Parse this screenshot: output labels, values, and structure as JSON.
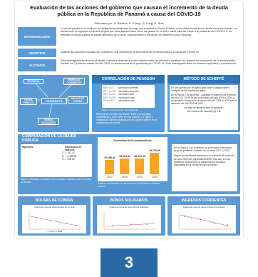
{
  "poster": {
    "title": "Evaluación de las acciones del gobierno que causan el incremento de la deuda pública en la República de Panamá a causa del COVID-19",
    "authors": "Elaborado por: A. Barraza, K. Chung, G. Fong, R. Ruiz",
    "intro": {
      "label": "INTRODUCCIÓN",
      "text": "La deuda pública es el conjunto de obligaciones pendientes de pago que mantiene el Sector Público, a una determinada fecha, frente a sus acreedores. La disminución de ingresos corrientes al igual que otros factores tales como los gastos en el sector salud para dar frente a la pandemia del COVID-19, ha afectado la deuda pública de países alrededor del mundo, especialmente a los países en desarrollo como Panamá."
    },
    "objetivo": {
      "label": "OBJETIVO",
      "text": "Analizar las acciones tomadas por el gobierno, que contribuyen al incremento de la deuda pública, a causa del COVID-19."
    },
    "alcance": {
      "label": "ALCANCE",
      "text": "Esta investigación tiene como propósito explicar y observar si existe relación entre las diferentes variables con respecto al incremento de la deuda pública durante los 3 primeros meses del año 2020, a consecuencia de la pandemia por COVID-19. Esta investigación tiene un alcance explicativo y correlacional."
    },
    "variables": {
      "center": "VARIABLES",
      "nodes": [
        "PERSONAL",
        "INGRESOS CORRIENTES",
        "BOLSAS DE COMIDA",
        "BONOS SOLIDARIOS",
        "DEUDA PÚBLICA"
      ]
    },
    "pearson": {
      "header": "CORRELACIÓN DE PEARSON",
      "table": [
        "0.9 < r ≤ 1",
        "0.7 < r ≤ 0.9",
        "0.5 < r ≤ 0.7",
        "0.3 < r ≤ 0.5",
        "0 < r ≤ 0.3"
      ],
      "table_labels": [
        "correlación perfecta",
        "correlación muy alta",
        "correlación alta",
        "correlación baja",
        "correlación nula"
      ],
      "caption": "Figura 1: Interpretación del coeficiente",
      "text": "Determinar si existe una relación entre dos variables cuantitativas y cuán fuerte es esa relación. La Figura 1 muestra los valores positivos que se pueden obtener en la correlación y su fuerza."
    },
    "scheffe": {
      "header": "MÉTODO DE SCHEFFÉ",
      "text1": "Es una prueba que se aplica para hacer comparaciones múltiples de las medias de grupo.",
      "text2": "En la Figura 2, la hipótesis 1 compara el aumento de la deuda del año 2017 al 2018 con el aumento del año 2019 a 2020; y la hipótesis 2 compara el aumento del año 2018 al 2019 con el aumento del año 2019 al 2020.",
      "text3": "La regla de decisión será el siguiente:",
      "rule": "Se rechaza Ho cuando |Cᵢ| ≥ Sᵢ"
    },
    "comparacion": {
      "header": "COMPARACIÓN DE LA DEUDA PÚBLICA",
      "hip_title": "Hipótesis:",
      "res_title": "Resultados de cálculos:",
      "results": [
        "C₁ = 347.47",
        "S₁ = 2,186.82",
        "S₂ = 528.62"
      ],
      "caption": "Figura 2: Hipótesis y resultados de los cálculos utilizados para la prueba de Scheffé",
      "chart_caption": "Gráfica1: Presentación en barras de los promedios de la deuda pública.",
      "text1": "En la Gráfica 1 se muestran los promedios calculados para los primeros 3 meses de los años 2017 a 2020.",
      "text2": "Según los resultados obtenidos, el aumento de la deuda del año 2020 fue significativamente más alto, lo cual podemos concluir que la pandemia fue un factor importante en la causa de este aumento."
    },
    "bottom": [
      {
        "header": "BOLSAS DE COMIDA",
        "caption": "Gráfica de Línea de Ajuste Bolsas de Comida"
      },
      {
        "header": "BONOS SOLIDARIOS",
        "caption": "Gráfica de Línea de Ajuste Bonos Solidarios"
      },
      {
        "header": "INGRESOS CORRIENTES",
        "caption": "Gráfica de Línea de Ajuste Ingresos Corrientes"
      }
    ],
    "equation": "y = 1274 x + 5988"
  },
  "page_badge": "3",
  "chart_data": {
    "type": "bar",
    "title": "Promedios de la deuda pública",
    "categories": [
      "2017",
      "2018",
      "2019",
      "2020"
    ],
    "values": [
      23168.81,
      26304.04,
      26272.33,
      34723.29
    ],
    "value_labels": [
      "23,168.81",
      "26,304.04",
      "26,272.33",
      "34,723.29"
    ],
    "ylim": [
      0,
      40000
    ],
    "colors": {
      "bar": "#f6a623",
      "accent": "#5b9bd5",
      "header": "#2e75b6"
    }
  }
}
